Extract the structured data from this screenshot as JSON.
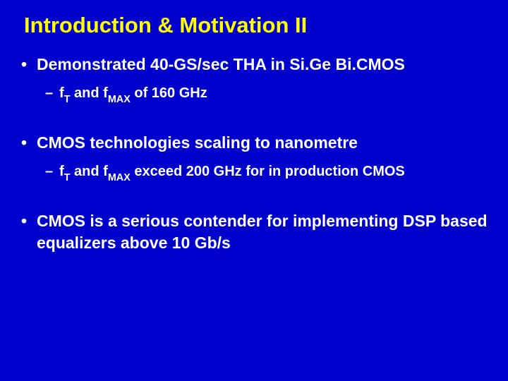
{
  "background_color": "#0000cc",
  "title_color": "#ffff00",
  "text_color": "#ffffff",
  "title_fontsize": 31,
  "bullet_l1_fontsize": 23,
  "bullet_l2_fontsize": 20,
  "title": "Introduction & Motivation II",
  "bullets": {
    "b1": "Demonstrated 40-GS/sec THA in Si.Ge Bi.CMOS",
    "b1_sub_pre": "f",
    "b1_sub_t": "T",
    "b1_sub_mid": " and f",
    "b1_sub_max": "MAX",
    "b1_sub_post": " of 160 GHz",
    "b2": "CMOS technologies scaling to nanometre",
    "b2_sub_pre": "f",
    "b2_sub_t": "T",
    "b2_sub_mid": " and f",
    "b2_sub_max": "MAX",
    "b2_sub_post": " exceed 200 GHz for in production CMOS",
    "b3": "CMOS is a serious contender for implementing DSP based equalizers above 10 Gb/s"
  }
}
